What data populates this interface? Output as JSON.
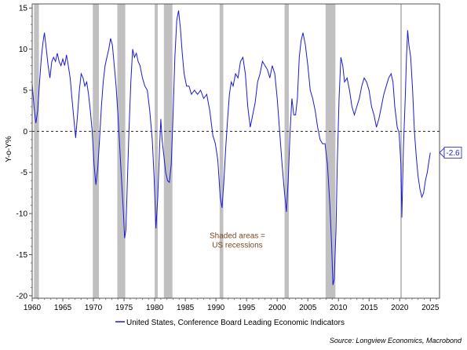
{
  "chart_data": {
    "type": "line",
    "ylabel": "Y-o-Y%",
    "xlim": [
      1960,
      2026.5
    ],
    "ylim": [
      -20.3,
      15.5
    ],
    "xticks": [
      1960,
      1965,
      1970,
      1975,
      1980,
      1985,
      1990,
      1995,
      2000,
      2005,
      2010,
      2015,
      2020,
      2025
    ],
    "yticks": [
      15,
      10,
      5,
      0,
      -5,
      -10,
      -15,
      -20
    ],
    "grid": false,
    "zero_line": "dashed",
    "legend": {
      "position": "bottom-center",
      "label": "United States, Conference Board Leading Economic Indicators"
    },
    "colors": {
      "series": "#1a1ad6",
      "recession": "#c0c0c0",
      "annotation": "#7a4a1c"
    },
    "recessions": [
      {
        "start": 1960.3,
        "end": 1961.1
      },
      {
        "start": 1969.9,
        "end": 1970.9
      },
      {
        "start": 1973.9,
        "end": 1975.2
      },
      {
        "start": 1980.0,
        "end": 1980.5
      },
      {
        "start": 1981.5,
        "end": 1982.9
      },
      {
        "start": 1990.6,
        "end": 1991.2
      },
      {
        "start": 2001.2,
        "end": 2001.9
      },
      {
        "start": 2007.9,
        "end": 2009.5
      },
      {
        "start": 2020.1,
        "end": 2020.35
      }
    ],
    "annotation": {
      "lines": [
        "Shaded areas =",
        "US recessions"
      ],
      "x": 1993.5,
      "y": -13
    },
    "last_value": {
      "label": "-2.6",
      "value": -2.6
    },
    "series": [
      {
        "name": "United States, Conference Board Leading Economic Indicators",
        "points": [
          [
            1960.0,
            5.8
          ],
          [
            1960.3,
            3.0
          ],
          [
            1960.6,
            1.0
          ],
          [
            1960.9,
            2.5
          ],
          [
            1961.2,
            6.0
          ],
          [
            1961.5,
            9.0
          ],
          [
            1961.8,
            11.0
          ],
          [
            1962.0,
            12.0
          ],
          [
            1962.3,
            10.0
          ],
          [
            1962.6,
            8.0
          ],
          [
            1962.9,
            6.5
          ],
          [
            1963.2,
            8.5
          ],
          [
            1963.5,
            9.0
          ],
          [
            1963.8,
            8.5
          ],
          [
            1964.1,
            9.5
          ],
          [
            1964.4,
            8.5
          ],
          [
            1964.7,
            8.0
          ],
          [
            1965.0,
            8.8
          ],
          [
            1965.3,
            8.0
          ],
          [
            1965.6,
            9.3
          ],
          [
            1965.9,
            8.0
          ],
          [
            1966.2,
            6.5
          ],
          [
            1966.5,
            4.0
          ],
          [
            1966.8,
            1.5
          ],
          [
            1967.1,
            -0.8
          ],
          [
            1967.4,
            2.0
          ],
          [
            1967.7,
            5.0
          ],
          [
            1968.0,
            7.0
          ],
          [
            1968.3,
            6.5
          ],
          [
            1968.6,
            5.5
          ],
          [
            1968.9,
            6.0
          ],
          [
            1969.2,
            4.5
          ],
          [
            1969.5,
            2.5
          ],
          [
            1969.8,
            0.0
          ],
          [
            1970.1,
            -4.0
          ],
          [
            1970.4,
            -6.5
          ],
          [
            1970.7,
            -4.5
          ],
          [
            1971.0,
            -1.0
          ],
          [
            1971.3,
            3.0
          ],
          [
            1971.6,
            6.0
          ],
          [
            1971.9,
            8.0
          ],
          [
            1972.2,
            9.0
          ],
          [
            1972.5,
            10.0
          ],
          [
            1972.8,
            11.3
          ],
          [
            1973.1,
            10.5
          ],
          [
            1973.4,
            8.0
          ],
          [
            1973.7,
            5.5
          ],
          [
            1974.0,
            2.0
          ],
          [
            1974.3,
            -2.0
          ],
          [
            1974.6,
            -6.0
          ],
          [
            1974.9,
            -10.0
          ],
          [
            1975.1,
            -13.0
          ],
          [
            1975.3,
            -12.0
          ],
          [
            1975.5,
            -7.0
          ],
          [
            1975.8,
            0.0
          ],
          [
            1976.1,
            6.0
          ],
          [
            1976.4,
            10.0
          ],
          [
            1976.7,
            9.0
          ],
          [
            1977.0,
            9.5
          ],
          [
            1977.3,
            8.5
          ],
          [
            1977.6,
            8.0
          ],
          [
            1978.0,
            6.5
          ],
          [
            1978.4,
            5.5
          ],
          [
            1978.8,
            5.0
          ],
          [
            1979.2,
            2.5
          ],
          [
            1979.6,
            -1.0
          ],
          [
            1979.9,
            -5.5
          ],
          [
            1980.2,
            -11.8
          ],
          [
            1980.5,
            -8.0
          ],
          [
            1980.8,
            -2.0
          ],
          [
            1981.0,
            1.5
          ],
          [
            1981.2,
            -1.0
          ],
          [
            1981.5,
            -3.0
          ],
          [
            1981.8,
            -5.0
          ],
          [
            1982.1,
            -6.0
          ],
          [
            1982.4,
            -6.2
          ],
          [
            1982.7,
            -4.0
          ],
          [
            1983.0,
            2.0
          ],
          [
            1983.3,
            9.0
          ],
          [
            1983.6,
            13.5
          ],
          [
            1983.9,
            14.7
          ],
          [
            1984.2,
            12.5
          ],
          [
            1984.5,
            9.5
          ],
          [
            1984.8,
            7.0
          ],
          [
            1985.2,
            5.5
          ],
          [
            1985.6,
            5.5
          ],
          [
            1986.0,
            4.5
          ],
          [
            1986.5,
            5.0
          ],
          [
            1987.0,
            4.5
          ],
          [
            1987.5,
            5.0
          ],
          [
            1988.0,
            4.0
          ],
          [
            1988.5,
            4.5
          ],
          [
            1989.0,
            2.5
          ],
          [
            1989.5,
            -0.5
          ],
          [
            1989.9,
            -1.5
          ],
          [
            1990.3,
            -3.5
          ],
          [
            1990.7,
            -8.0
          ],
          [
            1991.0,
            -9.3
          ],
          [
            1991.3,
            -6.0
          ],
          [
            1991.6,
            -2.0
          ],
          [
            1991.9,
            1.5
          ],
          [
            1992.2,
            4.5
          ],
          [
            1992.5,
            6.0
          ],
          [
            1992.8,
            5.5
          ],
          [
            1993.2,
            7.0
          ],
          [
            1993.6,
            6.5
          ],
          [
            1994.0,
            8.5
          ],
          [
            1994.4,
            9.0
          ],
          [
            1994.8,
            7.0
          ],
          [
            1995.2,
            3.0
          ],
          [
            1995.6,
            0.5
          ],
          [
            1996.0,
            2.0
          ],
          [
            1996.4,
            3.5
          ],
          [
            1996.8,
            6.0
          ],
          [
            1997.2,
            7.0
          ],
          [
            1997.6,
            8.5
          ],
          [
            1998.0,
            8.0
          ],
          [
            1998.4,
            7.5
          ],
          [
            1998.8,
            6.5
          ],
          [
            1999.2,
            8.0
          ],
          [
            1999.6,
            7.0
          ],
          [
            2000.0,
            4.0
          ],
          [
            2000.4,
            0.0
          ],
          [
            2000.8,
            -4.0
          ],
          [
            2001.2,
            -7.5
          ],
          [
            2001.5,
            -9.8
          ],
          [
            2001.8,
            -6.0
          ],
          [
            2002.1,
            0.0
          ],
          [
            2002.4,
            4.0
          ],
          [
            2002.7,
            2.0
          ],
          [
            2003.0,
            2.0
          ],
          [
            2003.3,
            4.0
          ],
          [
            2003.6,
            9.0
          ],
          [
            2003.9,
            11.0
          ],
          [
            2004.2,
            12.0
          ],
          [
            2004.6,
            10.5
          ],
          [
            2005.0,
            8.0
          ],
          [
            2005.4,
            5.0
          ],
          [
            2005.8,
            4.0
          ],
          [
            2006.2,
            2.5
          ],
          [
            2006.6,
            0.5
          ],
          [
            2007.0,
            -1.0
          ],
          [
            2007.4,
            -1.5
          ],
          [
            2007.8,
            -1.5
          ],
          [
            2008.2,
            -4.0
          ],
          [
            2008.6,
            -9.0
          ],
          [
            2008.9,
            -14.0
          ],
          [
            2009.1,
            -18.7
          ],
          [
            2009.3,
            -18.0
          ],
          [
            2009.6,
            -12.0
          ],
          [
            2009.8,
            -4.0
          ],
          [
            2010.1,
            4.0
          ],
          [
            2010.4,
            9.0
          ],
          [
            2010.7,
            8.0
          ],
          [
            2011.0,
            6.0
          ],
          [
            2011.4,
            6.5
          ],
          [
            2011.8,
            5.0
          ],
          [
            2012.2,
            3.0
          ],
          [
            2012.6,
            2.0
          ],
          [
            2013.0,
            3.0
          ],
          [
            2013.4,
            4.0
          ],
          [
            2013.8,
            5.5
          ],
          [
            2014.2,
            6.5
          ],
          [
            2014.6,
            6.0
          ],
          [
            2015.0,
            5.0
          ],
          [
            2015.4,
            3.0
          ],
          [
            2015.8,
            2.0
          ],
          [
            2016.2,
            0.5
          ],
          [
            2016.6,
            1.5
          ],
          [
            2017.0,
            3.0
          ],
          [
            2017.4,
            4.5
          ],
          [
            2017.8,
            5.5
          ],
          [
            2018.2,
            6.5
          ],
          [
            2018.6,
            7.0
          ],
          [
            2018.9,
            6.0
          ],
          [
            2019.2,
            3.0
          ],
          [
            2019.6,
            0.5
          ],
          [
            2019.9,
            -0.2
          ],
          [
            2020.2,
            -4.0
          ],
          [
            2020.35,
            -10.5
          ],
          [
            2020.6,
            -2.0
          ],
          [
            2020.9,
            4.0
          ],
          [
            2021.1,
            9.0
          ],
          [
            2021.3,
            12.3
          ],
          [
            2021.5,
            10.5
          ],
          [
            2021.8,
            9.0
          ],
          [
            2022.1,
            5.0
          ],
          [
            2022.4,
            0.0
          ],
          [
            2022.7,
            -3.0
          ],
          [
            2023.0,
            -5.5
          ],
          [
            2023.3,
            -7.0
          ],
          [
            2023.6,
            -8.0
          ],
          [
            2023.9,
            -7.5
          ],
          [
            2024.2,
            -6.0
          ],
          [
            2024.5,
            -5.0
          ],
          [
            2024.8,
            -3.5
          ],
          [
            2025.0,
            -2.6
          ]
        ]
      }
    ]
  },
  "legend_label": "United States, Conference Board Leading Economic Indicators",
  "source": "Source: Longview Economics, Macrobond"
}
